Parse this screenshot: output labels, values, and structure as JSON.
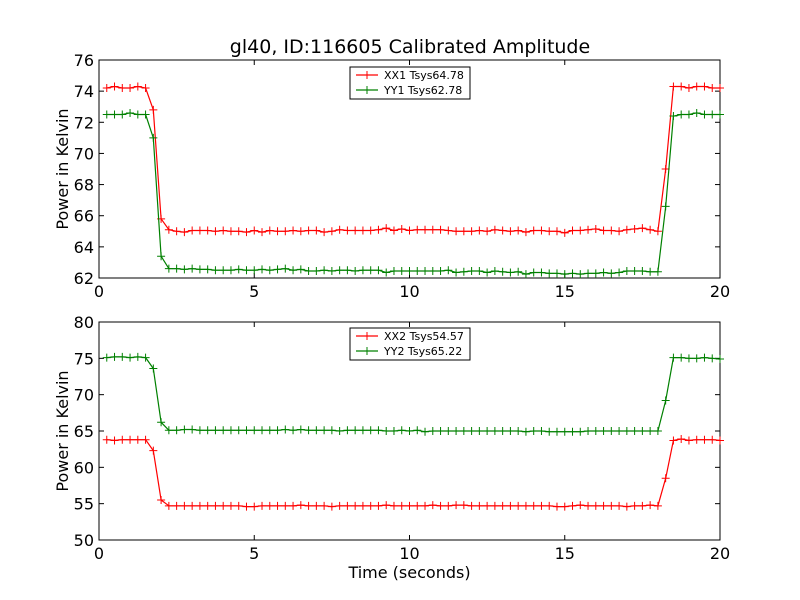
{
  "figure_title": "gl40, ID:116605 Calibrated Amplitude",
  "chart_data": [
    {
      "type": "line",
      "title": "gl40, ID:116605 Calibrated Amplitude",
      "xlabel": "",
      "ylabel": "Power in Kelvin",
      "xlim": [
        0,
        20
      ],
      "ylim": [
        62,
        76
      ],
      "xticks": [
        "0",
        "5",
        "10",
        "15",
        "20"
      ],
      "yticks": [
        "62",
        "64",
        "66",
        "68",
        "70",
        "72",
        "74",
        "76"
      ],
      "legend_position": "top-center",
      "grid": false,
      "x": [
        0.25,
        0.5,
        0.75,
        1.0,
        1.25,
        1.5,
        1.75,
        2.0,
        2.25,
        2.5,
        2.75,
        3.0,
        3.25,
        3.5,
        3.75,
        4.0,
        4.25,
        4.5,
        4.75,
        5.0,
        5.25,
        5.5,
        5.75,
        6.0,
        6.25,
        6.5,
        6.75,
        7.0,
        7.25,
        7.5,
        7.75,
        8.0,
        8.25,
        8.5,
        8.75,
        9.0,
        9.25,
        9.5,
        9.75,
        10.0,
        10.25,
        10.5,
        10.75,
        11.0,
        11.25,
        11.5,
        11.75,
        12.0,
        12.25,
        12.5,
        12.75,
        13.0,
        13.25,
        13.5,
        13.75,
        14.0,
        14.25,
        14.5,
        14.75,
        15.0,
        15.25,
        15.5,
        15.75,
        16.0,
        16.25,
        16.5,
        16.75,
        17.0,
        17.25,
        17.5,
        17.75,
        18.0,
        18.25,
        18.5,
        18.75,
        19.0,
        19.25,
        19.5,
        19.75,
        20.0
      ],
      "series": [
        {
          "name": "XX1 Tsys64.78",
          "color": "#ff0000",
          "values": [
            74.2,
            74.3,
            74.2,
            74.2,
            74.3,
            74.2,
            72.8,
            65.8,
            65.1,
            65.0,
            64.95,
            65.05,
            65.05,
            65.05,
            65.0,
            65.05,
            65.0,
            65.0,
            64.95,
            65.05,
            64.95,
            65.05,
            65.0,
            65.0,
            65.05,
            65.0,
            65.05,
            65.05,
            64.95,
            65.0,
            65.1,
            65.05,
            65.05,
            65.05,
            65.05,
            65.1,
            65.2,
            65.05,
            65.15,
            65.05,
            65.1,
            65.1,
            65.1,
            65.1,
            65.05,
            65.0,
            65.0,
            65.0,
            65.05,
            65.0,
            65.1,
            65.05,
            65.0,
            65.05,
            64.95,
            65.05,
            65.05,
            65.0,
            65.0,
            64.9,
            65.05,
            65.05,
            65.1,
            65.15,
            65.05,
            65.05,
            65.0,
            65.1,
            65.15,
            65.2,
            65.1,
            65.0,
            69.0,
            74.3,
            74.3,
            74.2,
            74.3,
            74.3,
            74.2,
            74.2
          ]
        },
        {
          "name": "YY1 Tsys62.78",
          "color": "#008000",
          "values": [
            72.5,
            72.5,
            72.5,
            72.6,
            72.5,
            72.5,
            71.0,
            63.4,
            62.6,
            62.6,
            62.55,
            62.6,
            62.55,
            62.55,
            62.5,
            62.5,
            62.5,
            62.55,
            62.5,
            62.5,
            62.55,
            62.5,
            62.55,
            62.6,
            62.5,
            62.55,
            62.45,
            62.45,
            62.5,
            62.45,
            62.5,
            62.5,
            62.45,
            62.5,
            62.5,
            62.5,
            62.35,
            62.45,
            62.45,
            62.45,
            62.45,
            62.45,
            62.45,
            62.45,
            62.5,
            62.35,
            62.4,
            62.45,
            62.45,
            62.35,
            62.45,
            62.4,
            62.35,
            62.4,
            62.25,
            62.35,
            62.35,
            62.3,
            62.3,
            62.25,
            62.3,
            62.25,
            62.3,
            62.3,
            62.35,
            62.3,
            62.35,
            62.45,
            62.45,
            62.45,
            62.4,
            62.4,
            66.6,
            72.4,
            72.5,
            72.5,
            72.6,
            72.5,
            72.5,
            72.5
          ]
        }
      ]
    },
    {
      "type": "line",
      "title": "",
      "xlabel": "Time (seconds)",
      "ylabel": "Power in Kelvin",
      "xlim": [
        0,
        20
      ],
      "ylim": [
        50,
        80
      ],
      "xticks": [
        "0",
        "5",
        "10",
        "15",
        "20"
      ],
      "yticks": [
        "50",
        "55",
        "60",
        "65",
        "70",
        "75",
        "80"
      ],
      "legend_position": "top-center",
      "grid": false,
      "x": [
        0.25,
        0.5,
        0.75,
        1.0,
        1.25,
        1.5,
        1.75,
        2.0,
        2.25,
        2.5,
        2.75,
        3.0,
        3.25,
        3.5,
        3.75,
        4.0,
        4.25,
        4.5,
        4.75,
        5.0,
        5.25,
        5.5,
        5.75,
        6.0,
        6.25,
        6.5,
        6.75,
        7.0,
        7.25,
        7.5,
        7.75,
        8.0,
        8.25,
        8.5,
        8.75,
        9.0,
        9.25,
        9.5,
        9.75,
        10.0,
        10.25,
        10.5,
        10.75,
        11.0,
        11.25,
        11.5,
        11.75,
        12.0,
        12.25,
        12.5,
        12.75,
        13.0,
        13.25,
        13.5,
        13.75,
        14.0,
        14.25,
        14.5,
        14.75,
        15.0,
        15.25,
        15.5,
        15.75,
        16.0,
        16.25,
        16.5,
        16.75,
        17.0,
        17.25,
        17.5,
        17.75,
        18.0,
        18.25,
        18.5,
        18.75,
        19.0,
        19.25,
        19.5,
        19.75,
        20.0
      ],
      "series": [
        {
          "name": "XX2 Tsys54.57",
          "color": "#ff0000",
          "values": [
            63.8,
            63.7,
            63.8,
            63.8,
            63.8,
            63.8,
            62.3,
            55.5,
            54.7,
            54.7,
            54.7,
            54.7,
            54.7,
            54.7,
            54.7,
            54.7,
            54.7,
            54.7,
            54.6,
            54.6,
            54.7,
            54.7,
            54.7,
            54.7,
            54.7,
            54.8,
            54.7,
            54.7,
            54.7,
            54.6,
            54.7,
            54.7,
            54.7,
            54.7,
            54.7,
            54.7,
            54.8,
            54.7,
            54.7,
            54.7,
            54.7,
            54.7,
            54.8,
            54.7,
            54.7,
            54.8,
            54.8,
            54.7,
            54.7,
            54.7,
            54.7,
            54.7,
            54.7,
            54.7,
            54.7,
            54.7,
            54.7,
            54.7,
            54.6,
            54.6,
            54.7,
            54.8,
            54.7,
            54.7,
            54.7,
            54.7,
            54.7,
            54.6,
            54.7,
            54.7,
            54.8,
            54.7,
            58.5,
            63.7,
            63.9,
            63.7,
            63.8,
            63.8,
            63.8,
            63.7
          ]
        },
        {
          "name": "YY2 Tsys65.22",
          "color": "#008000",
          "values": [
            75.1,
            75.2,
            75.2,
            75.1,
            75.2,
            75.1,
            73.6,
            66.2,
            65.1,
            65.1,
            65.2,
            65.2,
            65.1,
            65.1,
            65.1,
            65.1,
            65.1,
            65.1,
            65.1,
            65.1,
            65.1,
            65.1,
            65.1,
            65.2,
            65.1,
            65.2,
            65.1,
            65.1,
            65.1,
            65.1,
            65.0,
            65.1,
            65.1,
            65.1,
            65.1,
            65.1,
            65.0,
            65.0,
            65.1,
            65.0,
            65.1,
            64.9,
            65.0,
            65.0,
            65.0,
            65.0,
            65.0,
            65.0,
            65.0,
            65.0,
            65.0,
            65.0,
            65.0,
            65.0,
            64.9,
            65.0,
            65.0,
            64.9,
            64.9,
            64.9,
            64.9,
            64.9,
            65.0,
            65.0,
            65.0,
            65.0,
            65.0,
            65.0,
            65.0,
            65.0,
            65.0,
            65.0,
            69.2,
            75.1,
            75.1,
            75.0,
            75.0,
            75.1,
            75.0,
            74.9
          ]
        }
      ]
    }
  ]
}
